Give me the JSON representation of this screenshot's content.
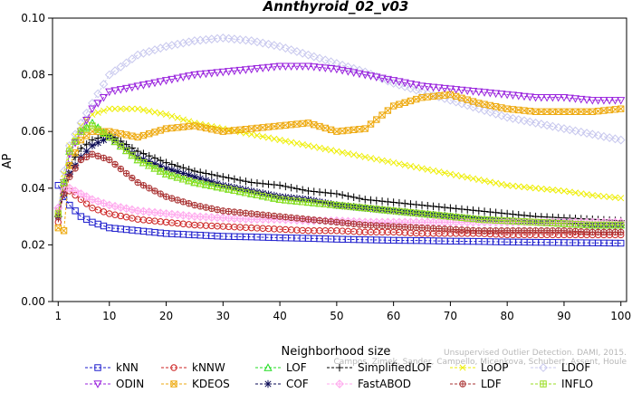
{
  "chart_data": {
    "type": "line",
    "title": "Annthyroid_02_v03",
    "xlabel": "Neighborhood size",
    "ylabel": "AP",
    "xlim": [
      0,
      101
    ],
    "ylim": [
      0,
      0.1
    ],
    "xticks": [
      1,
      10,
      20,
      30,
      40,
      50,
      60,
      70,
      80,
      90,
      100
    ],
    "yticks": [
      0.0,
      0.02,
      0.04,
      0.06,
      0.08,
      0.1
    ],
    "ytick_labels": [
      "0.00",
      "0.02",
      "0.04",
      "0.06",
      "0.08",
      "0.10"
    ],
    "grid": false,
    "legend_position": "bottom",
    "x": [
      1,
      2,
      3,
      5,
      7,
      10,
      15,
      20,
      25,
      30,
      35,
      40,
      45,
      50,
      55,
      60,
      65,
      70,
      75,
      80,
      85,
      90,
      95,
      100
    ],
    "series": [
      {
        "name": "kNN",
        "color": "#1a1acc",
        "marker": "square",
        "values": [
          0.041,
          0.037,
          0.034,
          0.03,
          0.028,
          0.026,
          0.025,
          0.024,
          0.0235,
          0.023,
          0.0228,
          0.0225,
          0.0223,
          0.022,
          0.0218,
          0.0216,
          0.0215,
          0.0213,
          0.0212,
          0.021,
          0.0209,
          0.0208,
          0.0207,
          0.0206
        ]
      },
      {
        "name": "kNNW",
        "color": "#cc2222",
        "marker": "circle",
        "values": [
          0.028,
          0.04,
          0.039,
          0.036,
          0.033,
          0.031,
          0.029,
          0.028,
          0.027,
          0.0265,
          0.026,
          0.0255,
          0.025,
          0.025,
          0.0245,
          0.0245,
          0.024,
          0.024,
          0.024,
          0.0235,
          0.0235,
          0.0235,
          0.0235,
          0.0235
        ]
      },
      {
        "name": "LOF",
        "color": "#22dd22",
        "marker": "triangle",
        "values": [
          0.031,
          0.042,
          0.053,
          0.06,
          0.063,
          0.058,
          0.05,
          0.045,
          0.042,
          0.04,
          0.038,
          0.036,
          0.035,
          0.034,
          0.033,
          0.032,
          0.031,
          0.03,
          0.029,
          0.0285,
          0.028,
          0.0275,
          0.027,
          0.027
        ]
      },
      {
        "name": "SimplifiedLOF",
        "color": "#000000",
        "marker": "plus",
        "values": [
          0.03,
          0.04,
          0.048,
          0.054,
          0.057,
          0.059,
          0.053,
          0.049,
          0.046,
          0.044,
          0.042,
          0.041,
          0.039,
          0.038,
          0.036,
          0.035,
          0.034,
          0.033,
          0.032,
          0.031,
          0.03,
          0.0295,
          0.029,
          0.0285
        ]
      },
      {
        "name": "LoOP",
        "color": "#eeee00",
        "marker": "x",
        "values": [
          0.032,
          0.045,
          0.055,
          0.062,
          0.066,
          0.068,
          0.068,
          0.066,
          0.063,
          0.061,
          0.059,
          0.057,
          0.055,
          0.053,
          0.051,
          0.049,
          0.047,
          0.045,
          0.043,
          0.041,
          0.04,
          0.039,
          0.0375,
          0.0365
        ]
      },
      {
        "name": "LDOF",
        "color": "#c8c8ee",
        "marker": "diamond",
        "values": [
          0.033,
          0.046,
          0.055,
          0.063,
          0.07,
          0.08,
          0.087,
          0.09,
          0.092,
          0.093,
          0.092,
          0.09,
          0.087,
          0.084,
          0.081,
          0.077,
          0.074,
          0.071,
          0.068,
          0.065,
          0.063,
          0.061,
          0.059,
          0.057
        ]
      },
      {
        "name": "ODIN",
        "color": "#9922dd",
        "marker": "triangle-down",
        "values": [
          0.032,
          0.042,
          0.052,
          0.06,
          0.068,
          0.074,
          0.076,
          0.078,
          0.08,
          0.081,
          0.082,
          0.083,
          0.083,
          0.082,
          0.08,
          0.078,
          0.076,
          0.075,
          0.074,
          0.073,
          0.072,
          0.072,
          0.071,
          0.071
        ]
      },
      {
        "name": "KDEOS",
        "color": "#eeaa11",
        "marker": "square-x",
        "values": [
          0.026,
          0.025,
          0.048,
          0.057,
          0.06,
          0.06,
          0.058,
          0.061,
          0.062,
          0.06,
          0.061,
          0.062,
          0.063,
          0.06,
          0.061,
          0.069,
          0.072,
          0.073,
          0.07,
          0.068,
          0.067,
          0.067,
          0.067,
          0.068
        ]
      },
      {
        "name": "COF",
        "color": "#0a0a55",
        "marker": "star",
        "values": [
          0.03,
          0.038,
          0.045,
          0.051,
          0.055,
          0.058,
          0.051,
          0.047,
          0.044,
          0.041,
          0.039,
          0.037,
          0.036,
          0.034,
          0.033,
          0.032,
          0.031,
          0.03,
          0.029,
          0.0285,
          0.028,
          0.028,
          0.027,
          0.027
        ]
      },
      {
        "name": "FastABOD",
        "color": "#ffaaee",
        "marker": "diamond-plus",
        "values": [
          0.033,
          0.039,
          0.04,
          0.038,
          0.036,
          0.034,
          0.032,
          0.031,
          0.03,
          0.0295,
          0.029,
          0.029,
          0.0285,
          0.0285,
          0.028,
          0.028,
          0.028,
          0.028,
          0.028,
          0.028,
          0.028,
          0.028,
          0.028,
          0.028
        ]
      },
      {
        "name": "LDF",
        "color": "#aa3333",
        "marker": "circle-plus",
        "values": [
          0.03,
          0.038,
          0.044,
          0.05,
          0.052,
          0.05,
          0.042,
          0.037,
          0.034,
          0.032,
          0.031,
          0.03,
          0.029,
          0.028,
          0.027,
          0.0265,
          0.026,
          0.0255,
          0.025,
          0.025,
          0.025,
          0.025,
          0.0245,
          0.0245
        ]
      },
      {
        "name": "INFLO",
        "color": "#99dd22",
        "marker": "square-cross",
        "values": [
          0.031,
          0.042,
          0.053,
          0.06,
          0.062,
          0.058,
          0.05,
          0.045,
          0.042,
          0.04,
          0.038,
          0.036,
          0.035,
          0.034,
          0.033,
          0.032,
          0.031,
          0.03,
          0.029,
          0.0285,
          0.028,
          0.0275,
          0.027,
          0.027
        ]
      }
    ],
    "legend_order": [
      "kNN",
      "kNNW",
      "LOF",
      "SimplifiedLOF",
      "LoOP",
      "LDOF",
      "ODIN",
      "KDEOS",
      "COF",
      "FastABOD",
      "LDF",
      "INFLO"
    ],
    "credit_lines": [
      "Unsupervised Outlier Detection. DAMI, 2015.",
      "Campos, Zimek, Sander, Campello, Micenkova, Schubert, Assent, Houle"
    ]
  }
}
